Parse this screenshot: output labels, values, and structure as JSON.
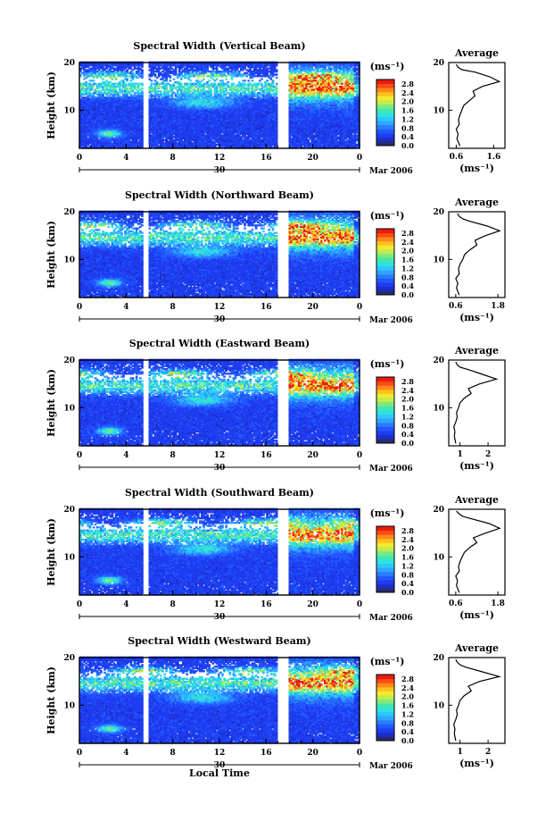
{
  "figure": {
    "date_label": "Mar 2006",
    "day_label": "30",
    "xlabel": "Local Time",
    "ylabel": "Height (km)",
    "unit": "(ms⁻¹)",
    "avg_title": "Average"
  },
  "colors": {
    "scale": [
      "#2a2a6a",
      "#1c2ec8",
      "#1e3cf0",
      "#2258ff",
      "#2a7cff",
      "#2ea6ff",
      "#2cc8ff",
      "#2ee2e0",
      "#40e8b0",
      "#7ce880",
      "#c0ec50",
      "#f0ea30",
      "#ffc020",
      "#ff8a18",
      "#ff4a14",
      "#e81c10"
    ],
    "white_gap": "#ffffff"
  },
  "chart_data": [
    {
      "type": "heatmap",
      "title": "Spectral Width (Vertical Beam)",
      "xlabel": "Local Time",
      "ylabel": "Height (km)",
      "xlim": [
        0,
        24
      ],
      "ylim": [
        2,
        20
      ],
      "x_ticks": [
        "0",
        "4",
        "8",
        "12",
        "16",
        "20",
        "0"
      ],
      "y_ticks": [
        "10",
        "20"
      ],
      "date_label": "Mar 2006",
      "day_label": "30",
      "colorbar": {
        "label": "(ms⁻¹)",
        "ticks": [
          "0.0",
          "0.4",
          "0.8",
          "1.2",
          "1.6",
          "2.0",
          "2.4",
          "2.8"
        ],
        "range": [
          0,
          3.0
        ]
      },
      "data_gaps_hours": [
        [
          5.6,
          5.8
        ],
        [
          17.1,
          17.3
        ],
        [
          17.6,
          17.8
        ]
      ],
      "profile": {
        "title": "Average",
        "xlabel": "(ms⁻¹)",
        "x_ticks": [
          "0.6",
          "1.6"
        ],
        "xlim": [
          0.4,
          1.9
        ],
        "y_ticks": [
          "10",
          "20"
        ],
        "heights": [
          2.5,
          4,
          5,
          6,
          7,
          8,
          9,
          10,
          11,
          12,
          13,
          14,
          15,
          16,
          17,
          18,
          18.5,
          19,
          19.6
        ],
        "values": [
          0.7,
          0.62,
          0.65,
          0.6,
          0.68,
          0.66,
          0.7,
          0.75,
          0.8,
          0.95,
          1.1,
          1.05,
          1.3,
          1.75,
          1.5,
          1.1,
          0.75,
          0.65,
          0.6
        ]
      }
    },
    {
      "type": "heatmap",
      "title": "Spectral Width (Northward Beam)",
      "xlabel": "Local Time",
      "ylabel": "Height (km)",
      "xlim": [
        0,
        24
      ],
      "ylim": [
        2,
        20
      ],
      "x_ticks": [
        "0",
        "4",
        "8",
        "12",
        "16",
        "20",
        "0"
      ],
      "y_ticks": [
        "10",
        "20"
      ],
      "date_label": "Mar 2006",
      "day_label": "30",
      "colorbar": {
        "label": "(ms⁻¹)",
        "ticks": [
          "0.0",
          "0.4",
          "0.8",
          "1.2",
          "1.6",
          "2.0",
          "2.4",
          "2.8"
        ],
        "range": [
          0,
          3.0
        ]
      },
      "data_gaps_hours": [
        [
          5.6,
          5.8
        ],
        [
          17.1,
          17.3
        ],
        [
          17.6,
          17.8
        ]
      ],
      "profile": {
        "title": "Average",
        "xlabel": "(ms⁻¹)",
        "x_ticks": [
          "0.6",
          "1.8"
        ],
        "xlim": [
          0.4,
          2.0
        ],
        "y_ticks": [
          "10",
          "20"
        ],
        "heights": [
          2.5,
          4,
          5,
          6,
          7,
          8,
          9,
          10,
          11,
          12,
          13,
          14,
          15,
          16,
          17,
          18,
          18.5,
          19,
          19.6
        ],
        "values": [
          0.7,
          0.62,
          0.66,
          0.6,
          0.7,
          0.68,
          0.72,
          0.8,
          0.85,
          1.0,
          1.2,
          1.15,
          1.45,
          1.85,
          1.5,
          1.0,
          0.8,
          0.7,
          0.65
        ]
      }
    },
    {
      "type": "heatmap",
      "title": "Spectral Width (Eastward Beam)",
      "xlabel": "Local Time",
      "ylabel": "Height (km)",
      "xlim": [
        0,
        24
      ],
      "ylim": [
        2,
        20
      ],
      "x_ticks": [
        "0",
        "4",
        "8",
        "12",
        "16",
        "20",
        "0"
      ],
      "y_ticks": [
        "10",
        "20"
      ],
      "date_label": "Mar 2006",
      "day_label": "30",
      "colorbar": {
        "label": "(ms⁻¹)",
        "ticks": [
          "0.0",
          "0.4",
          "0.8",
          "1.2",
          "1.6",
          "2.0",
          "2.4",
          "2.8"
        ],
        "range": [
          0,
          3.0
        ]
      },
      "data_gaps_hours": [
        [
          5.6,
          5.8
        ],
        [
          17.1,
          17.3
        ],
        [
          17.6,
          17.8
        ]
      ],
      "profile": {
        "title": "Average",
        "xlabel": "(ms⁻¹)",
        "x_ticks": [
          "1",
          "2"
        ],
        "xlim": [
          0.6,
          2.6
        ],
        "y_ticks": [
          "10",
          "20"
        ],
        "heights": [
          2.5,
          4,
          5,
          6,
          7,
          8,
          9,
          10,
          11,
          12,
          13,
          14,
          15,
          16,
          17,
          18,
          18.5,
          19,
          19.6
        ],
        "values": [
          0.85,
          0.8,
          0.82,
          0.78,
          0.85,
          0.9,
          0.88,
          0.95,
          1.0,
          1.15,
          1.4,
          1.3,
          1.7,
          2.3,
          1.8,
          1.3,
          1.0,
          0.9,
          0.85
        ]
      }
    },
    {
      "type": "heatmap",
      "title": "Spectral Width (Southward Beam)",
      "xlabel": "Local Time",
      "ylabel": "Height (km)",
      "xlim": [
        0,
        24
      ],
      "ylim": [
        2,
        20
      ],
      "x_ticks": [
        "0",
        "4",
        "8",
        "12",
        "16",
        "20",
        "0"
      ],
      "y_ticks": [
        "10",
        "20"
      ],
      "date_label": "Mar 2006",
      "day_label": "30",
      "colorbar": {
        "label": "(ms⁻¹)",
        "ticks": [
          "0.0",
          "0.4",
          "0.8",
          "1.2",
          "1.6",
          "2.0",
          "2.4",
          "2.8"
        ],
        "range": [
          0,
          3.0
        ]
      },
      "data_gaps_hours": [
        [
          5.6,
          5.8
        ],
        [
          17.1,
          17.3
        ],
        [
          17.6,
          17.8
        ]
      ],
      "profile": {
        "title": "Average",
        "xlabel": "(ms⁻¹)",
        "x_ticks": [
          "0.6",
          "1.8"
        ],
        "xlim": [
          0.4,
          2.0
        ],
        "y_ticks": [
          "10",
          "20"
        ],
        "heights": [
          2.5,
          4,
          5,
          6,
          7,
          8,
          9,
          10,
          11,
          12,
          13,
          14,
          15,
          16,
          17,
          18,
          18.5,
          19,
          19.6
        ],
        "values": [
          0.7,
          0.62,
          0.65,
          0.6,
          0.7,
          0.68,
          0.72,
          0.78,
          0.85,
          1.0,
          1.2,
          1.1,
          1.45,
          1.85,
          1.55,
          1.05,
          0.8,
          0.7,
          0.62
        ]
      }
    },
    {
      "type": "heatmap",
      "title": "Spectral Width (Westward Beam)",
      "xlabel": "Local Time",
      "ylabel": "Height (km)",
      "xlim": [
        0,
        24
      ],
      "ylim": [
        2,
        20
      ],
      "x_ticks": [
        "0",
        "4",
        "8",
        "12",
        "16",
        "20",
        "0"
      ],
      "y_ticks": [
        "10",
        "20"
      ],
      "date_label": "Mar 2006",
      "day_label": "30",
      "colorbar": {
        "label": "(ms⁻¹)",
        "ticks": [
          "0.0",
          "0.4",
          "0.8",
          "1.2",
          "1.6",
          "2.0",
          "2.4",
          "2.8"
        ],
        "range": [
          0,
          3.0
        ]
      },
      "data_gaps_hours": [
        [
          5.6,
          5.8
        ],
        [
          17.1,
          17.3
        ],
        [
          17.6,
          17.8
        ]
      ],
      "profile": {
        "title": "Average",
        "xlabel": "(ms⁻¹)",
        "x_ticks": [
          "1",
          "2"
        ],
        "xlim": [
          0.6,
          2.6
        ],
        "y_ticks": [
          "10",
          "20"
        ],
        "heights": [
          2.5,
          4,
          5,
          6,
          7,
          8,
          9,
          10,
          11,
          12,
          13,
          14,
          15,
          16,
          17,
          18,
          18.5,
          19,
          19.6
        ],
        "values": [
          0.85,
          0.8,
          0.82,
          0.78,
          0.85,
          0.9,
          0.88,
          0.95,
          1.0,
          1.15,
          1.4,
          1.3,
          1.7,
          2.4,
          1.8,
          1.2,
          1.0,
          0.9,
          0.85
        ]
      }
    }
  ]
}
